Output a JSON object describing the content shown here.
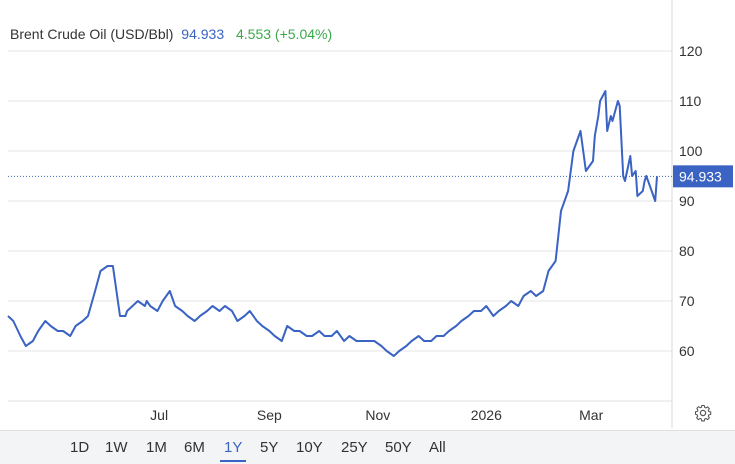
{
  "legend": {
    "name": "Brent Crude Oil (USD/Bbl)",
    "price": "94.933",
    "change": "4.553 (+5.04%)"
  },
  "last_price_tag": "94.933",
  "icons": {
    "settings": "gear-icon"
  },
  "colors": {
    "line": "#3a63c4",
    "positive": "#3aa84a",
    "tag_bg": "#3a63c4"
  },
  "range_buttons": [
    "1D",
    "1W",
    "1M",
    "6M",
    "1Y",
    "5Y",
    "10Y",
    "25Y",
    "50Y",
    "All"
  ],
  "active_range": "1Y",
  "chart_data": {
    "type": "line",
    "title": "Brent Crude Oil (USD/Bbl)",
    "xlabel": "",
    "ylabel": "",
    "x_tick_labels": [
      "Jul",
      "Sep",
      "Nov",
      "2026",
      "Mar"
    ],
    "y_ticks": [
      60,
      70,
      80,
      90,
      100,
      110,
      120
    ],
    "ylim": [
      50,
      130
    ],
    "grid": true,
    "legend_position": "top-left",
    "last_value": 94.933,
    "series": [
      {
        "name": "Brent Crude Oil (USD/Bbl)",
        "x": [
          "2025-04-07",
          "2025-04-10",
          "2025-04-14",
          "2025-04-17",
          "2025-04-21",
          "2025-04-24",
          "2025-04-28",
          "2025-05-01",
          "2025-05-05",
          "2025-05-08",
          "2025-05-12",
          "2025-05-15",
          "2025-05-19",
          "2025-05-22",
          "2025-05-26",
          "2025-05-29",
          "2025-06-02",
          "2025-06-05",
          "2025-06-09",
          "2025-06-12",
          "2025-06-13",
          "2025-06-16",
          "2025-06-19",
          "2025-06-23",
          "2025-06-24",
          "2025-06-26",
          "2025-06-30",
          "2025-07-03",
          "2025-07-07",
          "2025-07-10",
          "2025-07-14",
          "2025-07-17",
          "2025-07-21",
          "2025-07-24",
          "2025-07-28",
          "2025-07-31",
          "2025-08-04",
          "2025-08-07",
          "2025-08-11",
          "2025-08-14",
          "2025-08-18",
          "2025-08-21",
          "2025-08-25",
          "2025-08-28",
          "2025-09-01",
          "2025-09-04",
          "2025-09-08",
          "2025-09-11",
          "2025-09-15",
          "2025-09-18",
          "2025-09-22",
          "2025-09-25",
          "2025-09-29",
          "2025-10-02",
          "2025-10-06",
          "2025-10-09",
          "2025-10-13",
          "2025-10-16",
          "2025-10-20",
          "2025-10-23",
          "2025-10-27",
          "2025-10-30",
          "2025-11-03",
          "2025-11-06",
          "2025-11-10",
          "2025-11-13",
          "2025-11-17",
          "2025-11-20",
          "2025-11-24",
          "2025-11-27",
          "2025-12-01",
          "2025-12-04",
          "2025-12-08",
          "2025-12-11",
          "2025-12-15",
          "2025-12-18",
          "2025-12-22",
          "2025-12-25",
          "2025-12-29",
          "2026-01-01",
          "2026-01-05",
          "2026-01-08",
          "2026-01-12",
          "2026-01-15",
          "2026-01-19",
          "2026-01-22",
          "2026-01-26",
          "2026-01-29",
          "2026-02-02",
          "2026-02-05",
          "2026-02-09",
          "2026-02-12",
          "2026-02-16",
          "2026-02-19",
          "2026-02-23",
          "2026-02-26",
          "2026-03-02",
          "2026-03-03",
          "2026-03-05",
          "2026-03-06",
          "2026-03-09",
          "2026-03-10",
          "2026-03-12",
          "2026-03-13",
          "2026-03-16",
          "2026-03-17",
          "2026-03-19",
          "2026-03-20",
          "2026-03-23",
          "2026-03-24",
          "2026-03-26",
          "2026-03-27",
          "2026-03-30",
          "2026-03-31",
          "2026-04-01",
          "2026-04-02",
          "2026-04-03",
          "2026-04-06",
          "2026-04-07"
        ],
        "values": [
          67,
          66,
          63,
          61,
          62,
          64,
          66,
          65,
          64,
          64,
          63,
          65,
          66,
          67,
          72,
          76,
          77,
          77,
          67,
          67,
          68,
          69,
          70,
          69,
          70,
          69,
          68,
          70,
          72,
          69,
          68,
          67,
          66,
          67,
          68,
          69,
          68,
          69,
          68,
          66,
          67,
          68,
          66,
          65,
          64,
          63,
          62,
          65,
          64,
          64,
          63,
          63,
          64,
          63,
          63,
          64,
          62,
          63,
          62,
          62,
          62,
          62,
          61,
          60,
          59,
          60,
          61,
          62,
          63,
          62,
          62,
          63,
          63,
          64,
          65,
          66,
          67,
          68,
          68,
          69,
          67,
          68,
          69,
          70,
          69,
          71,
          72,
          71,
          72,
          76,
          78,
          88,
          92,
          100,
          104,
          96,
          98,
          103,
          107,
          110,
          112,
          104,
          107,
          106,
          110,
          109,
          95,
          94,
          99,
          95,
          96,
          91,
          92,
          94,
          95,
          94,
          93,
          90,
          94.933
        ]
      }
    ]
  }
}
